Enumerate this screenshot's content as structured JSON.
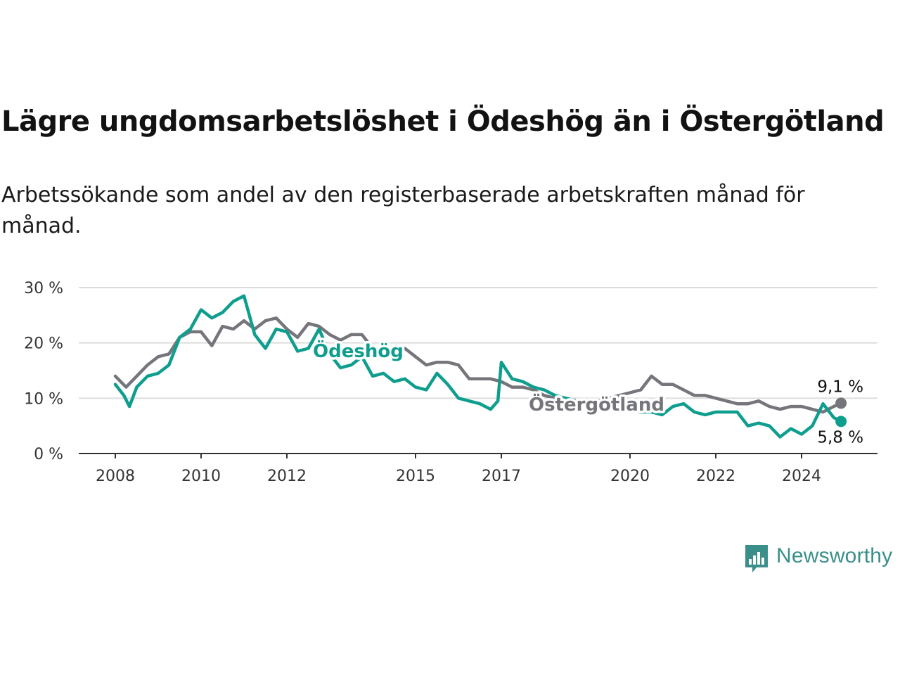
{
  "title": "Lägre ungdomsarbetslöshet i Ödeshög än i Östergötland",
  "subtitle": "Arbetssökande som andel av den registerbaserade arbetskraften månad för månad.",
  "brand": {
    "name": "Newsworthy",
    "color": "#3a8f8a"
  },
  "chart_data": {
    "type": "line",
    "title": "Lägre ungdomsarbetslöshet i Ödeshög än i Östergötland",
    "xlabel": "",
    "ylabel": "",
    "ylim": [
      0,
      30
    ],
    "xlim": [
      2008.0,
      2025.0
    ],
    "grid": true,
    "legend": "inline labels",
    "y_ticks": [
      "0 %",
      "10 %",
      "20 %",
      "30 %"
    ],
    "x_ticks": [
      "2008",
      "2010",
      "2012",
      "2015",
      "2017",
      "2020",
      "2022",
      "2024"
    ],
    "series": [
      {
        "name": "Östergötland",
        "color": "#76757b",
        "end_label": "9,1 %",
        "x": [
          2008.0,
          2008.25,
          2008.5,
          2008.75,
          2009.0,
          2009.25,
          2009.5,
          2009.75,
          2010.0,
          2010.25,
          2010.5,
          2010.75,
          2011.0,
          2011.25,
          2011.5,
          2011.75,
          2012.0,
          2012.25,
          2012.5,
          2012.75,
          2013.0,
          2013.25,
          2013.5,
          2013.75,
          2014.0,
          2014.25,
          2014.5,
          2014.75,
          2015.0,
          2015.25,
          2015.5,
          2015.75,
          2016.0,
          2016.25,
          2016.5,
          2016.75,
          2017.0,
          2017.25,
          2017.5,
          2017.75,
          2018.0,
          2018.25,
          2018.5,
          2018.75,
          2019.0,
          2019.25,
          2019.5,
          2019.75,
          2020.0,
          2020.25,
          2020.5,
          2020.75,
          2021.0,
          2021.25,
          2021.5,
          2021.75,
          2022.0,
          2022.25,
          2022.5,
          2022.75,
          2023.0,
          2023.25,
          2023.5,
          2023.75,
          2024.0,
          2024.25,
          2024.5,
          2024.75,
          2024.92
        ],
        "values": [
          14.0,
          12.0,
          14.0,
          16.0,
          17.5,
          18.0,
          21.0,
          22.0,
          22.0,
          19.5,
          23.0,
          22.5,
          24.0,
          22.5,
          24.0,
          24.5,
          22.5,
          21.0,
          23.5,
          23.0,
          21.5,
          20.5,
          21.5,
          21.5,
          19.0,
          18.5,
          18.5,
          19.0,
          17.5,
          16.0,
          16.5,
          16.5,
          16.0,
          13.5,
          13.5,
          13.5,
          13.0,
          12.0,
          12.0,
          11.5,
          10.5,
          10.0,
          10.0,
          9.5,
          9.5,
          9.5,
          10.0,
          10.5,
          11.0,
          11.5,
          14.0,
          12.5,
          12.5,
          11.5,
          10.5,
          10.5,
          10.0,
          9.5,
          9.0,
          9.0,
          9.5,
          8.5,
          8.0,
          8.5,
          8.5,
          8.0,
          7.5,
          8.5,
          9.1
        ]
      },
      {
        "name": "Ödeshög",
        "color": "#0f9e8e",
        "end_label": "5,8 %",
        "x": [
          2008.0,
          2008.2,
          2008.33,
          2008.5,
          2008.75,
          2009.0,
          2009.25,
          2009.5,
          2009.75,
          2010.0,
          2010.25,
          2010.5,
          2010.75,
          2011.0,
          2011.25,
          2011.5,
          2011.75,
          2012.0,
          2012.25,
          2012.5,
          2012.75,
          2013.0,
          2013.25,
          2013.5,
          2013.75,
          2014.0,
          2014.25,
          2014.5,
          2014.75,
          2015.0,
          2015.25,
          2015.5,
          2015.75,
          2016.0,
          2016.25,
          2016.5,
          2016.75,
          2016.92,
          2017.0,
          2017.25,
          2017.5,
          2017.75,
          2018.0,
          2018.25,
          2018.5,
          2018.75,
          2019.0,
          2019.25,
          2019.5,
          2019.75,
          2020.0,
          2020.25,
          2020.5,
          2020.75,
          2021.0,
          2021.25,
          2021.5,
          2021.75,
          2022.0,
          2022.25,
          2022.5,
          2022.75,
          2023.0,
          2023.25,
          2023.5,
          2023.75,
          2024.0,
          2024.25,
          2024.5,
          2024.75,
          2024.92
        ],
        "values": [
          12.5,
          10.5,
          8.5,
          12.0,
          14.0,
          14.5,
          16.0,
          21.0,
          22.5,
          26.0,
          24.5,
          25.5,
          27.5,
          28.5,
          21.5,
          19.0,
          22.5,
          22.0,
          18.5,
          19.0,
          22.5,
          18.0,
          15.5,
          16.0,
          17.5,
          14.0,
          14.5,
          13.0,
          13.5,
          12.0,
          11.5,
          14.5,
          12.5,
          10.0,
          9.5,
          9.0,
          8.0,
          9.5,
          16.5,
          13.5,
          13.0,
          12.0,
          11.5,
          10.5,
          10.0,
          9.5,
          9.0,
          8.5,
          8.0,
          8.5,
          8.0,
          7.5,
          7.5,
          7.0,
          8.5,
          9.0,
          7.5,
          7.0,
          7.5,
          7.5,
          7.5,
          5.0,
          5.5,
          5.0,
          3.0,
          4.5,
          3.5,
          5.0,
          9.0,
          6.5,
          5.8
        ]
      }
    ]
  }
}
